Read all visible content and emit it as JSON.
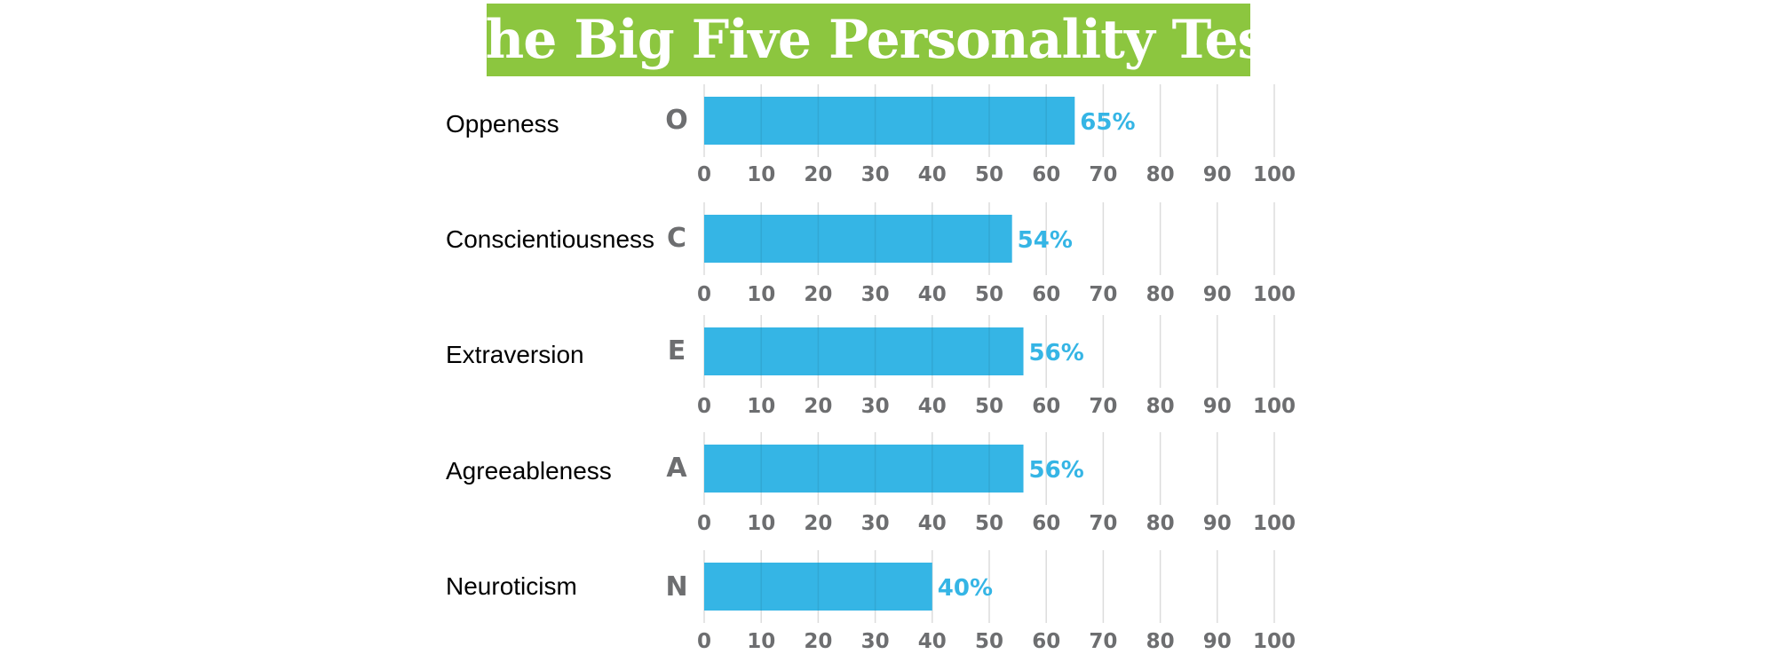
{
  "title": "The Big Five Personality Test",
  "colors": {
    "title_bg": "#8cc63f",
    "title_text": "#ffffff",
    "bar": "#35b5e5",
    "value_label": "#35b5e5",
    "tick_label": "#6d6e70",
    "grid": "#dcdcdc"
  },
  "traits": [
    {
      "name": "Oppeness",
      "code": "O"
    },
    {
      "name": "Conscientiousness",
      "code": "C"
    },
    {
      "name": "Extraversion",
      "code": "E"
    },
    {
      "name": "Agreeableness",
      "code": "A"
    },
    {
      "name": "Neuroticism",
      "code": "N"
    }
  ],
  "chart_data": [
    {
      "type": "bar",
      "orientation": "horizontal",
      "categories": [
        "O"
      ],
      "values": [
        65
      ],
      "value_labels": [
        "65%"
      ],
      "xlim": [
        0,
        100
      ],
      "xticks": [
        "0",
        "10",
        "20",
        "30",
        "40",
        "50",
        "60",
        "70",
        "80",
        "90",
        "100"
      ],
      "grid": true
    },
    {
      "type": "bar",
      "orientation": "horizontal",
      "categories": [
        "C"
      ],
      "values": [
        54
      ],
      "value_labels": [
        "54%"
      ],
      "xlim": [
        0,
        100
      ],
      "xticks": [
        "0",
        "10",
        "20",
        "30",
        "40",
        "50",
        "60",
        "70",
        "80",
        "90",
        "100"
      ],
      "grid": true
    },
    {
      "type": "bar",
      "orientation": "horizontal",
      "categories": [
        "E"
      ],
      "values": [
        56
      ],
      "value_labels": [
        "56%"
      ],
      "xlim": [
        0,
        100
      ],
      "xticks": [
        "0",
        "10",
        "20",
        "30",
        "40",
        "50",
        "60",
        "70",
        "80",
        "90",
        "100"
      ],
      "grid": true
    },
    {
      "type": "bar",
      "orientation": "horizontal",
      "categories": [
        "A"
      ],
      "values": [
        56
      ],
      "value_labels": [
        "56%"
      ],
      "xlim": [
        0,
        100
      ],
      "xticks": [
        "0",
        "10",
        "20",
        "30",
        "40",
        "50",
        "60",
        "70",
        "80",
        "90",
        "100"
      ],
      "grid": true
    },
    {
      "type": "bar",
      "orientation": "horizontal",
      "categories": [
        "N"
      ],
      "values": [
        40
      ],
      "value_labels": [
        "40%"
      ],
      "xlim": [
        0,
        100
      ],
      "xticks": [
        "0",
        "10",
        "20",
        "30",
        "40",
        "50",
        "60",
        "70",
        "80",
        "90",
        "100"
      ],
      "grid": true
    }
  ]
}
